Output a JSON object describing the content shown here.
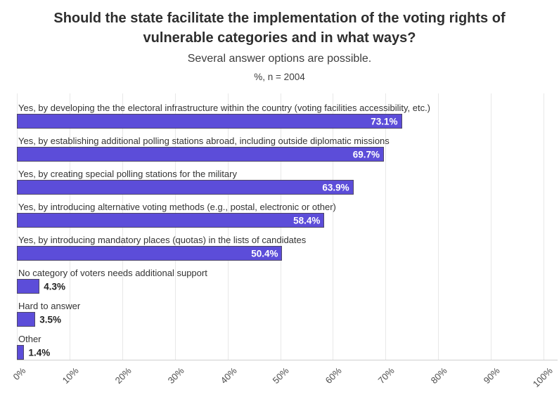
{
  "header": {
    "title": "Should the state facilitate the implementation of the voting rights of vulnerable categories and in what ways?",
    "subtitle": "Several answer options are possible.",
    "note": "%, n = 2004"
  },
  "chart_data": {
    "type": "bar",
    "orientation": "horizontal",
    "title": "Should the state facilitate the implementation of the voting rights of vulnerable categories and in what ways?",
    "subtitle": "Several answer options are possible.",
    "note": "%, n = 2004",
    "categories": [
      "Yes, by developing the the electoral infrastructure within the country (voting facilities accessibility, etc.)",
      "Yes, by establishing additional polling stations abroad, including outside diplomatic missions",
      "Yes, by creating special polling stations for the military",
      "Yes, by introducing alternative voting methods (e.g., postal, electronic or other)",
      "Yes, by introducing mandatory places (quotas) in the lists of candidates",
      "No category of voters needs additional support",
      "Hard to answer",
      "Other"
    ],
    "values": [
      73.1,
      69.7,
      63.9,
      58.4,
      50.4,
      4.3,
      3.5,
      1.4
    ],
    "value_labels": [
      "73.1%",
      "69.7%",
      "63.9%",
      "58.4%",
      "50.4%",
      "4.3%",
      "3.5%",
      "1.4%"
    ],
    "xlim": [
      0,
      100
    ],
    "x_tick_labels": [
      "0%",
      "10%",
      "20%",
      "30%",
      "40%",
      "50%",
      "60%",
      "70%",
      "80%",
      "90%",
      "100%"
    ],
    "grid": true,
    "legend": "none",
    "colors": {
      "bar_fill": "#5c4dd9",
      "bar_border": "#4e4668",
      "value_label_inside": "#ffffff",
      "value_label_outside": "#222222",
      "category_text": "#333333",
      "axis_text": "#4d4d4d",
      "gridline": "#e8e8e8",
      "axis_line": "#cfcfcf",
      "title_text": "#2e2e2e",
      "subtitle_text": "#3d3d3d"
    }
  }
}
